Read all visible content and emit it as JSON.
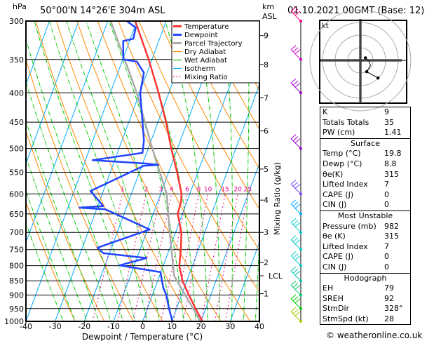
{
  "header": {
    "location": "50°00'N  14°26'E  304m  ASL",
    "datetime": "01.10.2021  00GMT  (Base: 12)",
    "left_unit": "hPa",
    "right_unit_1": "km",
    "right_unit_2": "ASL"
  },
  "footer": {
    "copyright": "© weatheronline.co.uk"
  },
  "chart_data": {
    "type": "skew-t",
    "xlabel": "Dewpoint / Temperature (°C)",
    "ylabel_left": "hPa",
    "ylabel_right": "Mixing Ratio (g/kg)",
    "xlim": [
      -40,
      40
    ],
    "ylim": [
      1000,
      300
    ],
    "y_scale": "log",
    "x_ticks": [
      -40,
      -30,
      -20,
      -10,
      0,
      10,
      20,
      30,
      40
    ],
    "pressure_ticks": [
      300,
      350,
      400,
      450,
      500,
      550,
      600,
      650,
      700,
      750,
      800,
      850,
      900,
      950,
      1000
    ],
    "km_ticks": [
      {
        "km": "9",
        "p": 318
      },
      {
        "km": "8",
        "p": 357
      },
      {
        "km": "7",
        "p": 408
      },
      {
        "km": "6",
        "p": 466
      },
      {
        "km": "5",
        "p": 543
      },
      {
        "km": "4",
        "p": 615
      },
      {
        "km": "3",
        "p": 700
      },
      {
        "km": "2",
        "p": 790
      },
      {
        "km": "1",
        "p": 895
      }
    ],
    "lcl": {
      "label": "LCL",
      "p": 833
    },
    "mixing_ratio_labels": [
      "1",
      "2",
      "3",
      "4",
      "6",
      "8",
      "10",
      "15",
      "20",
      "25"
    ],
    "mixing_ratio_values": [
      1,
      2,
      3,
      4,
      6,
      8,
      10,
      15,
      20,
      25
    ],
    "legend": {
      "placement": "top-right",
      "entries": [
        {
          "name": "Temperature",
          "color": "#ff3333"
        },
        {
          "name": "Dewpoint",
          "color": "#2244ff"
        },
        {
          "name": "Parcel Trajectory",
          "color": "#aaaaaa"
        },
        {
          "name": "Dry Adiabat",
          "color": "#ff8800"
        },
        {
          "name": "Wet Adiabat",
          "color": "#00cc00"
        },
        {
          "name": "Isotherm",
          "color": "#00aaff"
        },
        {
          "name": "Mixing Ratio",
          "color": "#ee0088"
        }
      ]
    },
    "series": [
      {
        "name": "Temperature",
        "points": [
          [
            1000,
            20.5
          ],
          [
            950,
            16.5
          ],
          [
            900,
            12.5
          ],
          [
            850,
            8.5
          ],
          [
            800,
            5.5
          ],
          [
            750,
            4
          ],
          [
            700,
            2
          ],
          [
            650,
            -1.6
          ],
          [
            620,
            -2
          ],
          [
            600,
            -2.8
          ],
          [
            550,
            -7.1
          ],
          [
            500,
            -12.1
          ],
          [
            450,
            -17.2
          ],
          [
            400,
            -23.5
          ],
          [
            350,
            -31.1
          ],
          [
            300,
            -40.6
          ]
        ]
      },
      {
        "name": "Dewpoint",
        "points": [
          [
            1000,
            10.2
          ],
          [
            950,
            7.4
          ],
          [
            900,
            4.8
          ],
          [
            874,
            2.8
          ],
          [
            849,
            1.4
          ],
          [
            821,
            -0.1
          ],
          [
            799,
            -15
          ],
          [
            776,
            -6.7
          ],
          [
            761,
            -22.1
          ],
          [
            744,
            -24.8
          ],
          [
            692,
            -9.2
          ],
          [
            638,
            -27
          ],
          [
            634,
            -36.1
          ],
          [
            630,
            -28.1
          ],
          [
            593,
            -34.4
          ],
          [
            536,
            -19.3
          ],
          [
            534,
            -14.5
          ],
          [
            531,
            -19.1
          ],
          [
            524,
            -37.6
          ],
          [
            509,
            -21.4
          ],
          [
            484,
            -22.5
          ],
          [
            400,
            -29.8
          ],
          [
            369,
            -31.1
          ],
          [
            353,
            -34.9
          ],
          [
            350,
            -39.8
          ],
          [
            325,
            -42.2
          ],
          [
            322,
            -39
          ],
          [
            308,
            -39.6
          ],
          [
            300,
            -43.5
          ]
        ]
      },
      {
        "name": "Parcel Trajectory",
        "points": [
          [
            1000,
            19.8
          ],
          [
            833,
            5
          ],
          [
            700,
            -2
          ],
          [
            600,
            -7.9
          ],
          [
            500,
            -18.6
          ],
          [
            400,
            -31
          ],
          [
            300,
            -49
          ]
        ]
      }
    ],
    "wind_barbs": [
      {
        "p": 300,
        "color": "#ff0088"
      },
      {
        "p": 350,
        "color": "#cc00cc"
      },
      {
        "p": 400,
        "color": "#9900cc"
      },
      {
        "p": 500,
        "color": "#9900cc"
      },
      {
        "p": 600,
        "color": "#7744ff"
      },
      {
        "p": 650,
        "color": "#00aaff"
      },
      {
        "p": 700,
        "color": "#00cccc"
      },
      {
        "p": 750,
        "color": "#00cccc"
      },
      {
        "p": 800,
        "color": "#00cccc"
      },
      {
        "p": 850,
        "color": "#00ccaa"
      },
      {
        "p": 900,
        "color": "#00cc66"
      },
      {
        "p": 950,
        "color": "#00cc00"
      },
      {
        "p": 1000,
        "color": "#aacc00"
      }
    ],
    "hodograph": {
      "unit_label": "kt",
      "ring_kt": [
        10,
        20,
        30,
        40
      ],
      "points_uv_kt": [
        [
          4,
          2
        ],
        [
          7,
          -1
        ],
        [
          8,
          -4
        ],
        [
          5,
          -9
        ],
        [
          14,
          -14
        ]
      ],
      "color": "#000000"
    }
  },
  "indices": {
    "general": [
      {
        "label": "K",
        "value": "9"
      },
      {
        "label": "Totals Totals",
        "value": "35"
      },
      {
        "label": "PW (cm)",
        "value": "1.41"
      }
    ],
    "surface": {
      "title": "Surface",
      "rows": [
        {
          "label": "Temp (°C)",
          "value": "19.8"
        },
        {
          "label": "Dewp (°C)",
          "value": "8.8"
        },
        {
          "label": "θe(K)",
          "value": "315"
        },
        {
          "label": "Lifted Index",
          "value": "7"
        },
        {
          "label": "CAPE (J)",
          "value": "0"
        },
        {
          "label": "CIN (J)",
          "value": "0"
        }
      ]
    },
    "most_unstable": {
      "title": "Most Unstable",
      "rows": [
        {
          "label": "Pressure (mb)",
          "value": "982"
        },
        {
          "label": "θe (K)",
          "value": "315"
        },
        {
          "label": "Lifted Index",
          "value": "7"
        },
        {
          "label": "CAPE (J)",
          "value": "0"
        },
        {
          "label": "CIN (J)",
          "value": "0"
        }
      ]
    },
    "hodograph": {
      "title": "Hodograph",
      "rows": [
        {
          "label": "EH",
          "value": "79"
        },
        {
          "label": "SREH",
          "value": "92"
        },
        {
          "label": "StmDir",
          "value": "328°"
        },
        {
          "label": "StmSpd (kt)",
          "value": "28"
        }
      ]
    }
  }
}
